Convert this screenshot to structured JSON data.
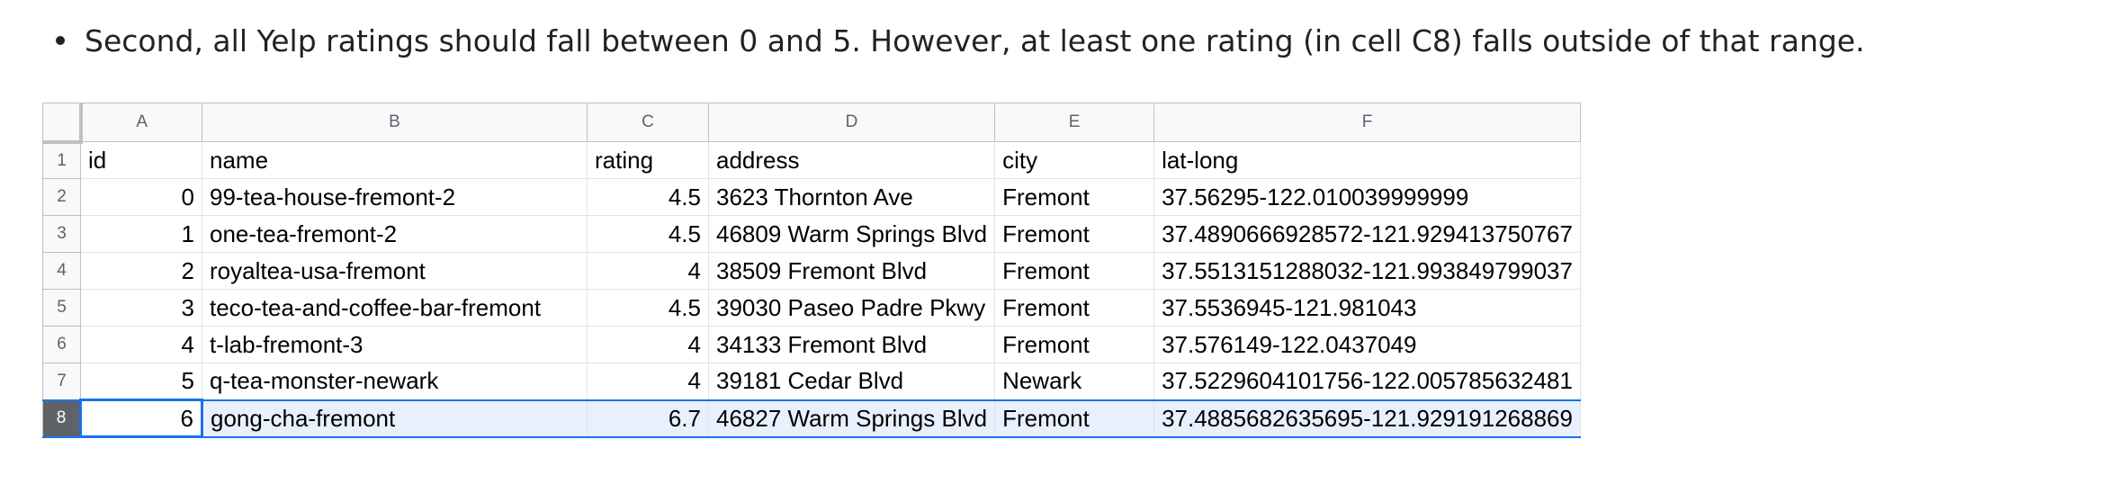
{
  "text": {
    "bullet": "Second, all Yelp ratings should fall between 0 and 5. However, at least one rating (in cell C8) falls outside of that range."
  },
  "spreadsheet": {
    "column_letters": [
      "A",
      "B",
      "C",
      "D",
      "E",
      "F"
    ],
    "rows": [
      {
        "num": "1",
        "cells": [
          "id",
          "name",
          "rating",
          "address",
          "city",
          "lat-long"
        ]
      },
      {
        "num": "2",
        "cells": [
          "0",
          "99-tea-house-fremont-2",
          "4.5",
          "3623 Thornton Ave",
          "Fremont",
          "37.56295-122.010039999999"
        ]
      },
      {
        "num": "3",
        "cells": [
          "1",
          "one-tea-fremont-2",
          "4.5",
          "46809 Warm Springs Blvd",
          "Fremont",
          "37.4890666928572-121.929413750767"
        ]
      },
      {
        "num": "4",
        "cells": [
          "2",
          "royaltea-usa-fremont",
          "4",
          "38509 Fremont Blvd",
          "Fremont",
          "37.5513151288032-121.993849799037"
        ]
      },
      {
        "num": "5",
        "cells": [
          "3",
          "teco-tea-and-coffee-bar-fremont",
          "4.5",
          "39030 Paseo Padre Pkwy",
          "Fremont",
          "37.5536945-121.981043"
        ]
      },
      {
        "num": "6",
        "cells": [
          "4",
          "t-lab-fremont-3",
          "4",
          "34133 Fremont Blvd",
          "Fremont",
          "37.576149-122.0437049"
        ]
      },
      {
        "num": "7",
        "cells": [
          "5",
          "q-tea-monster-newark",
          "4",
          "39181 Cedar Blvd",
          "Newark",
          "37.5229604101756-122.005785632481"
        ]
      },
      {
        "num": "8",
        "cells": [
          "6",
          "gong-cha-fremont",
          "6.7",
          "46827 Warm Springs Blvd",
          "Fremont",
          "37.4885682635695-121.929191268869"
        ]
      }
    ],
    "selected_row": "8",
    "colors": {
      "selection_border": "#1a73e8",
      "selection_fill": "#e8f0fe",
      "header_bg": "#f8f9fa",
      "selected_row_header_bg": "#5f6368"
    }
  }
}
